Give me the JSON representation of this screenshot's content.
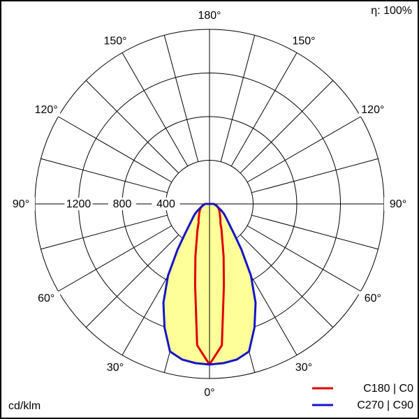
{
  "chart_data": {
    "type": "polar",
    "annotation": "η: 100%",
    "r_label": "cd/klm",
    "rlim": [
      0,
      1600
    ],
    "rticks": [
      400,
      800,
      1200
    ],
    "angle_grid_step": 15,
    "angle_ticks": [
      {
        "value": 0,
        "label": "0°"
      },
      {
        "value": 30,
        "label": "30°"
      },
      {
        "value": 60,
        "label": "60°"
      },
      {
        "value": 90,
        "label": "90°"
      },
      {
        "value": 120,
        "label": "120°"
      },
      {
        "value": 150,
        "label": "150°"
      },
      {
        "value": 180,
        "label": "180°"
      }
    ],
    "angles": [
      -90,
      -85,
      -80,
      -75,
      -70,
      -65,
      -60,
      -55,
      -50,
      -45,
      -40,
      -35,
      -30,
      -25,
      -20,
      -15,
      -10,
      -5,
      0,
      5,
      10,
      15,
      20,
      25,
      30,
      35,
      40,
      45,
      50,
      55,
      60,
      65,
      70,
      75,
      80,
      85,
      90
    ],
    "fill_color": "#ffff99",
    "series": [
      {
        "name": "C180 | C0",
        "color": "#e00000",
        "values": [
          40,
          50,
          60,
          70,
          80,
          90,
          100,
          110,
          120,
          135,
          150,
          175,
          200,
          260,
          340,
          500,
          760,
          1300,
          1472,
          1300,
          760,
          500,
          340,
          260,
          200,
          175,
          150,
          135,
          120,
          110,
          100,
          90,
          80,
          70,
          60,
          50,
          40
        ]
      },
      {
        "name": "C270 | C90",
        "color": "#1414c8",
        "fill": true,
        "values": [
          40,
          45,
          55,
          65,
          80,
          100,
          130,
          165,
          200,
          250,
          340,
          510,
          760,
          1000,
          1205,
          1400,
          1448,
          1465,
          1472,
          1465,
          1448,
          1400,
          1205,
          1000,
          760,
          510,
          340,
          250,
          200,
          165,
          130,
          100,
          80,
          65,
          55,
          45,
          40
        ]
      }
    ]
  }
}
